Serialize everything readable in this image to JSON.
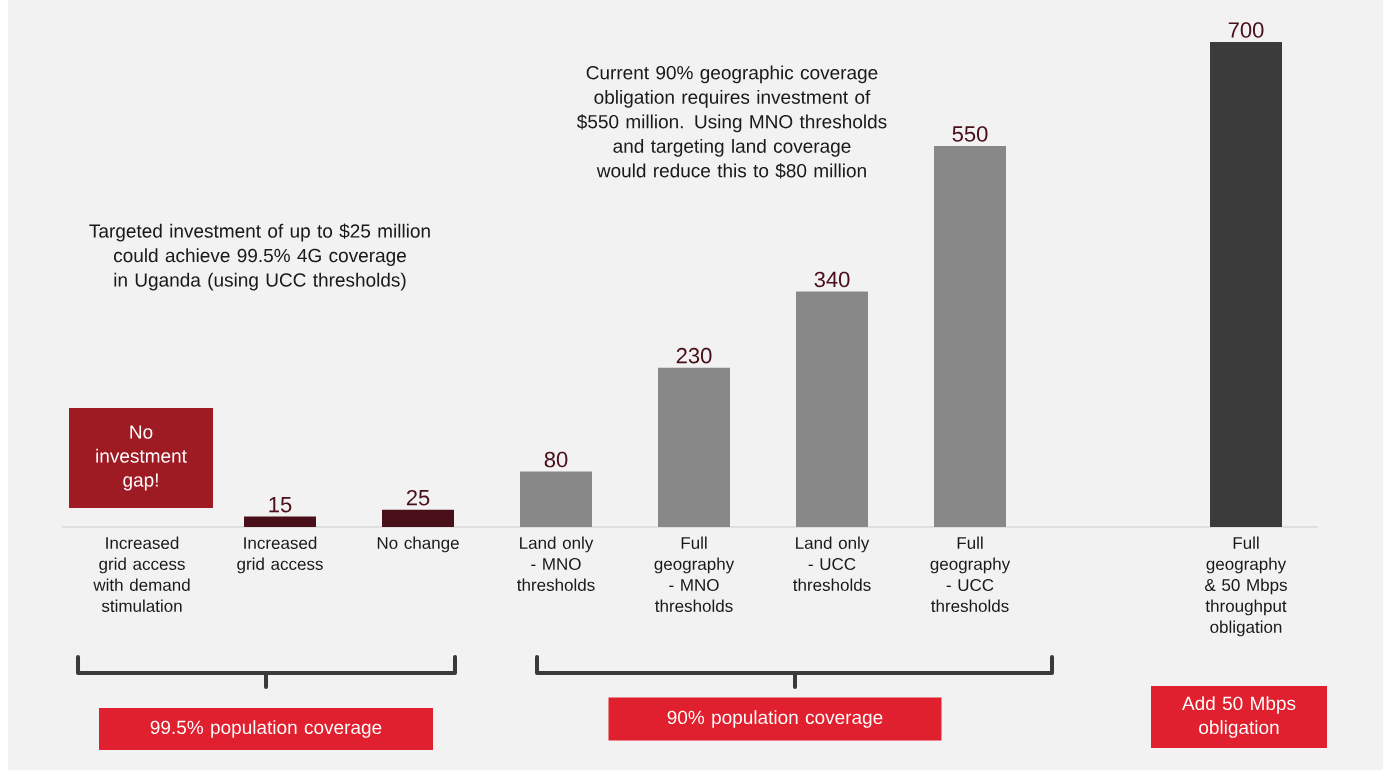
{
  "chart_data": {
    "type": "bar",
    "categories": [
      "Increased grid access with demand stimulation",
      "Increased grid access",
      "No change",
      "Land only - MNO thresholds",
      "Full geography - MNO thresholds",
      "Land only - UCC thresholds",
      "Full geography - UCC thresholds",
      null,
      "Full geography & 50 Mbps throughput obligation"
    ],
    "values": [
      null,
      15,
      25,
      80,
      230,
      340,
      550,
      null,
      700
    ],
    "colors": [
      null,
      "#4a1019",
      "#4a1019",
      "#888888",
      "#888888",
      "#888888",
      "#888888",
      null,
      "#3a3b3a"
    ],
    "data_labels": true,
    "annotations": [
      "Current 90% geographic coverage obligation requires investment of $550 million. Using MNO thresholds and targeting land coverage would reduce this to $80 million",
      "Targeted investment of up to $25 million could achieve 99.5% 4G coverage in Uganda (using UCC thresholds)",
      "No investment gap!",
      "99.5% population coverage",
      "90% population coverage",
      "Add 50 Mbps obligation"
    ]
  }
}
